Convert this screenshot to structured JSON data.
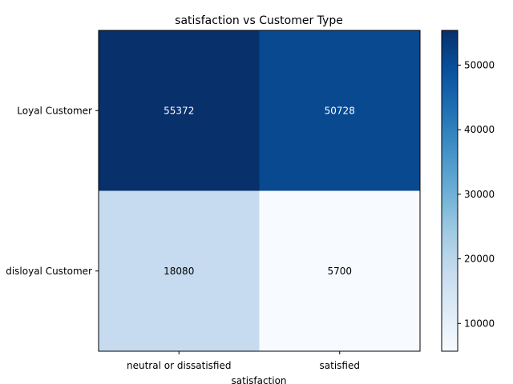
{
  "chart_data": {
    "type": "heatmap",
    "title": "satisfaction vs Customer Type",
    "xlabel": "satisfaction",
    "ylabel": "",
    "x_categories": [
      "neutral or dissatisfied",
      "satisfied"
    ],
    "y_categories": [
      "Loyal Customer",
      "disloyal Customer"
    ],
    "values": [
      [
        55372,
        50728
      ],
      [
        18080,
        5700
      ]
    ],
    "colormap": "Blues",
    "color_range": [
      5700,
      55372
    ],
    "colorbar_ticks": [
      "10000",
      "20000",
      "30000",
      "40000",
      "50000"
    ],
    "cell_labels": [
      [
        "55372",
        "50728"
      ],
      [
        "18080",
        "5700"
      ]
    ],
    "annotation_colors": [
      [
        "#ffffff",
        "#ffffff"
      ],
      [
        "#000000",
        "#000000"
      ]
    ]
  }
}
